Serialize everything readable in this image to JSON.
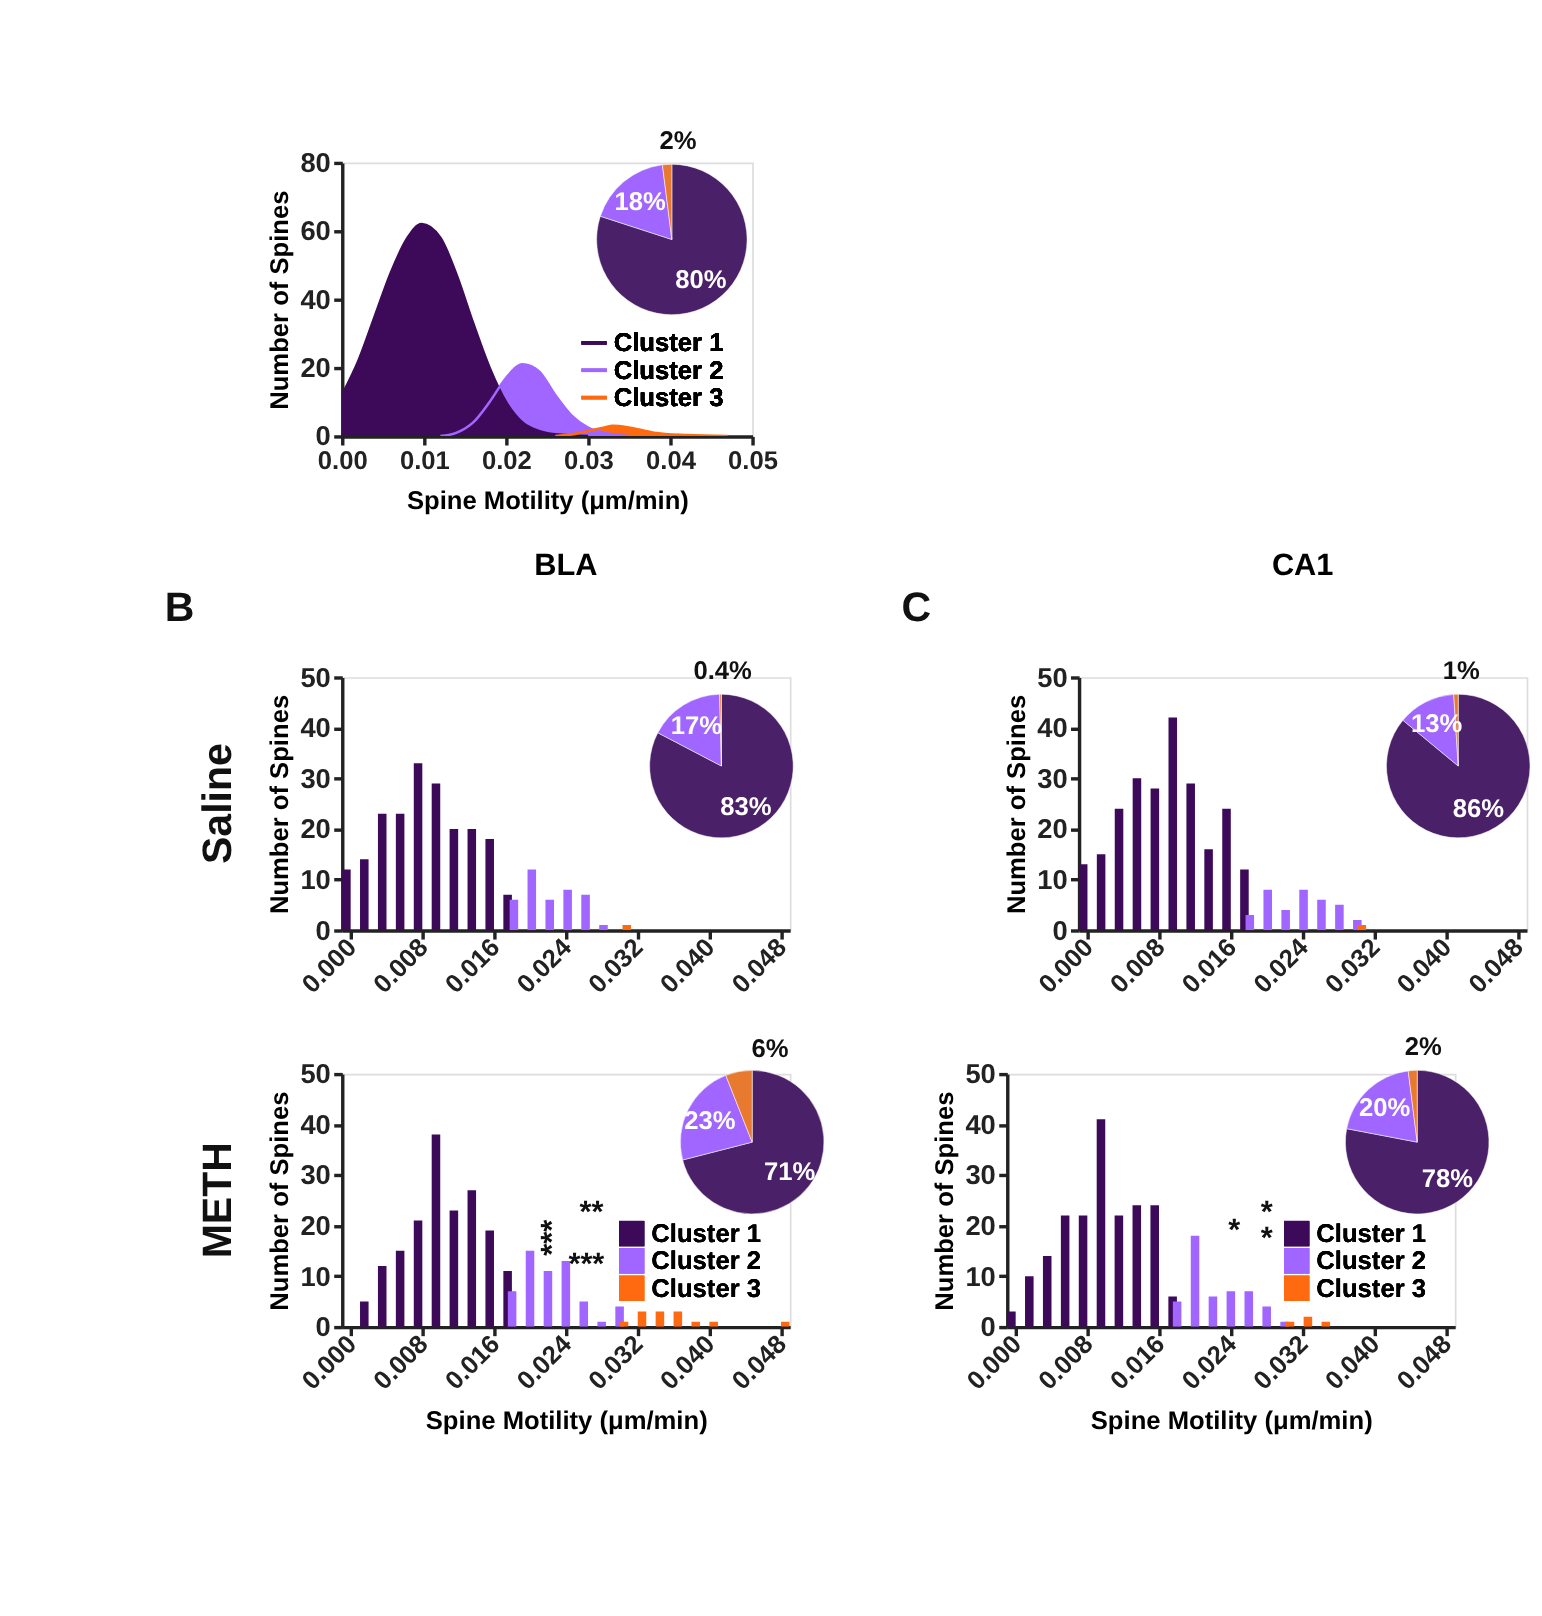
{
  "chart_data": [
    {
      "type": "area",
      "xlabel": "Spine Motility (μm/min)",
      "ylabel": "Number of Spines",
      "xlim": [
        0,
        0.05
      ],
      "xticks": [
        {
          "value": 0,
          "label": "0.00"
        },
        {
          "value": 0.01,
          "label": "0.01"
        },
        {
          "value": 0.02,
          "label": "0.02"
        },
        {
          "value": 0.03,
          "label": "0.03"
        },
        {
          "value": 0.04,
          "label": "0.04"
        },
        {
          "value": 0.05,
          "label": "0.05"
        }
      ],
      "ylim": [
        0,
        80
      ],
      "yticks": [
        0,
        20,
        40,
        60,
        80
      ],
      "legend": "bottom right",
      "series": [
        {
          "name": "Cluster 1",
          "color": "#3d0a5a",
          "x": [
            0,
            0.002,
            0.004,
            0.006,
            0.008,
            0.0097,
            0.012,
            0.014,
            0.016,
            0.018,
            0.02,
            0.022,
            0.024,
            0.026,
            0.03
          ],
          "values": [
            12,
            22,
            35,
            48,
            58,
            62,
            58,
            47,
            33,
            20,
            10,
            4,
            1.5,
            0.5,
            0
          ]
        },
        {
          "name": "Cluster 2",
          "color": "#a066ff",
          "x": [
            0.012,
            0.014,
            0.016,
            0.018,
            0.02,
            0.022,
            0.024,
            0.026,
            0.028,
            0.03,
            0.032,
            0.035
          ],
          "values": [
            0,
            1,
            4,
            10,
            17,
            21,
            19,
            12,
            6,
            2.5,
            1,
            0
          ]
        },
        {
          "name": "Cluster 3",
          "color": "#ff6a10",
          "x": [
            0.026,
            0.028,
            0.03,
            0.032,
            0.033,
            0.035,
            0.038,
            0.042,
            0.047
          ],
          "values": [
            0,
            0.5,
            1.5,
            2.5,
            3,
            2.5,
            1,
            0.3,
            0
          ]
        }
      ]
    },
    {
      "type": "pie",
      "categories": [
        null,
        null,
        null
      ],
      "values": [
        80,
        18,
        2
      ],
      "colors": [
        "#4a2068",
        "#a066ff",
        "#e87a30"
      ],
      "value_labels": [
        "80%",
        "18%",
        "2%"
      ]
    },
    {
      "type": "bar",
      "title": "BLA",
      "ylabel": "Number of Spines",
      "annotations": [
        "B",
        "Saline"
      ],
      "xlim": [
        -0.001,
        0.049
      ],
      "xticks": [
        {
          "value": 0,
          "label": "0.000"
        },
        {
          "value": 0.008,
          "label": "0.008"
        },
        {
          "value": 0.016,
          "label": "0.016"
        },
        {
          "value": 0.024,
          "label": "0.024"
        },
        {
          "value": 0.032,
          "label": "0.032"
        },
        {
          "value": 0.04,
          "label": "0.040"
        },
        {
          "value": 0.048,
          "label": "0.048"
        }
      ],
      "ylim": [
        0,
        50
      ],
      "yticks": [
        0,
        10,
        20,
        30,
        40,
        50
      ],
      "series": [
        {
          "color": "#3d0a5a",
          "x": [
            -0.0005,
            0.0015,
            0.0035,
            0.0055,
            0.0075,
            0.0095,
            0.0115,
            0.0135,
            0.0155,
            0.0175
          ],
          "values": [
            12,
            14,
            23,
            23,
            33,
            29,
            20,
            20,
            18,
            7
          ]
        },
        {
          "color": "#a066ff",
          "x": [
            0.0182,
            0.0202,
            0.0222,
            0.0242,
            0.0262,
            0.0282
          ],
          "values": [
            6,
            12,
            6,
            8,
            7,
            1
          ]
        },
        {
          "color": "#ff6a10",
          "x": [
            0.0308
          ],
          "values": [
            1
          ]
        }
      ]
    },
    {
      "type": "pie",
      "categories": [
        null,
        null,
        null
      ],
      "values": [
        83,
        17,
        0.4
      ],
      "colors": [
        "#4a2068",
        "#a066ff",
        "#e87a30"
      ],
      "value_labels": [
        "83%",
        "17%",
        "0.4%"
      ]
    },
    {
      "type": "bar",
      "title": "CA1",
      "ylabel": "Number of Spines",
      "annotations": [
        "C"
      ],
      "xlim": [
        -0.001,
        0.049
      ],
      "xticks": [
        {
          "value": 0,
          "label": "0.000"
        },
        {
          "value": 0.008,
          "label": "0.008"
        },
        {
          "value": 0.016,
          "label": "0.016"
        },
        {
          "value": 0.024,
          "label": "0.024"
        },
        {
          "value": 0.032,
          "label": "0.032"
        },
        {
          "value": 0.04,
          "label": "0.040"
        },
        {
          "value": 0.048,
          "label": "0.048"
        }
      ],
      "ylim": [
        0,
        50
      ],
      "yticks": [
        0,
        10,
        20,
        30,
        40,
        50
      ],
      "series": [
        {
          "color": "#3d0a5a",
          "x": [
            -0.0005,
            0.0015,
            0.0035,
            0.0055,
            0.0075,
            0.0095,
            0.0115,
            0.0135,
            0.0155,
            0.0175
          ],
          "values": [
            13,
            15,
            24,
            30,
            28,
            42,
            29,
            16,
            24,
            12
          ]
        },
        {
          "color": "#a066ff",
          "x": [
            0.0181,
            0.0201,
            0.0221,
            0.0241,
            0.0261,
            0.0281,
            0.0301
          ],
          "values": [
            3,
            8,
            4,
            8,
            6,
            5,
            2
          ]
        },
        {
          "color": "#ff6a10",
          "x": [
            0.0306
          ],
          "values": [
            1
          ]
        }
      ]
    },
    {
      "type": "pie",
      "categories": [
        null,
        null,
        null
      ],
      "values": [
        86,
        13,
        1
      ],
      "colors": [
        "#4a2068",
        "#a066ff",
        "#e87a30"
      ],
      "value_labels": [
        "86%",
        "13%",
        "1%"
      ]
    },
    {
      "type": "bar",
      "xlabel": "Spine Motility (μm/min)",
      "ylabel": "Number of Spines",
      "annotations": [
        "METH",
        "**",
        "***",
        "***"
      ],
      "legend": "bottom right",
      "xlim": [
        -0.001,
        0.049
      ],
      "xticks": [
        {
          "value": 0,
          "label": "0.000"
        },
        {
          "value": 0.008,
          "label": "0.008"
        },
        {
          "value": 0.016,
          "label": "0.016"
        },
        {
          "value": 0.024,
          "label": "0.024"
        },
        {
          "value": 0.032,
          "label": "0.032"
        },
        {
          "value": 0.04,
          "label": "0.040"
        },
        {
          "value": 0.048,
          "label": "0.048"
        }
      ],
      "ylim": [
        0,
        50
      ],
      "yticks": [
        0,
        10,
        20,
        30,
        40,
        50
      ],
      "series": [
        {
          "name": "Cluster 1",
          "color": "#3d0a5a",
          "x": [
            0.0015,
            0.0035,
            0.0055,
            0.0075,
            0.0095,
            0.0115,
            0.0135,
            0.0155,
            0.0175
          ],
          "values": [
            5,
            12,
            15,
            21,
            38,
            23,
            27,
            19,
            11
          ]
        },
        {
          "name": "Cluster 2",
          "color": "#a066ff",
          "x": [
            0.018,
            0.02,
            0.022,
            0.024,
            0.026,
            0.028,
            0.03
          ],
          "values": [
            7,
            15,
            11,
            13,
            5,
            1,
            4
          ]
        },
        {
          "name": "Cluster 3",
          "color": "#ff6a10",
          "x": [
            0.0305,
            0.0325,
            0.0345,
            0.0365,
            0.0385,
            0.0405,
            0.0485
          ],
          "values": [
            1,
            3,
            3,
            3,
            1,
            1,
            1
          ]
        }
      ]
    },
    {
      "type": "pie",
      "categories": [
        null,
        null,
        null
      ],
      "values": [
        71,
        23,
        6
      ],
      "colors": [
        "#4a2068",
        "#a066ff",
        "#e87a30"
      ],
      "value_labels": [
        "71%",
        "23%",
        "6%"
      ]
    },
    {
      "type": "bar",
      "xlabel": "Spine Motility (μm/min)",
      "ylabel": "Number of Spines",
      "annotations": [
        "*",
        "*",
        "*"
      ],
      "legend": "bottom right",
      "xlim": [
        -0.001,
        0.049
      ],
      "xticks": [
        {
          "value": 0,
          "label": "0.000"
        },
        {
          "value": 0.008,
          "label": "0.008"
        },
        {
          "value": 0.016,
          "label": "0.016"
        },
        {
          "value": 0.024,
          "label": "0.024"
        },
        {
          "value": 0.032,
          "label": "0.032"
        },
        {
          "value": 0.04,
          "label": "0.040"
        },
        {
          "value": 0.048,
          "label": "0.048"
        }
      ],
      "ylim": [
        0,
        50
      ],
      "yticks": [
        0,
        10,
        20,
        30,
        40,
        50
      ],
      "series": [
        {
          "name": "Cluster 1",
          "color": "#3d0a5a",
          "x": [
            -0.0005,
            0.0015,
            0.0035,
            0.0055,
            0.0075,
            0.0095,
            0.0115,
            0.0135,
            0.0155,
            0.0175
          ],
          "values": [
            3,
            10,
            14,
            22,
            22,
            41,
            22,
            24,
            24,
            6
          ]
        },
        {
          "name": "Cluster 2",
          "color": "#a066ff",
          "x": [
            0.018,
            0.02,
            0.022,
            0.024,
            0.026,
            0.028,
            0.03
          ],
          "values": [
            5,
            18,
            6,
            7,
            7,
            4,
            1
          ]
        },
        {
          "name": "Cluster 3",
          "color": "#ff6a10",
          "x": [
            0.0306,
            0.0326,
            0.0346
          ],
          "values": [
            1,
            2,
            1
          ]
        }
      ]
    },
    {
      "type": "pie",
      "categories": [
        null,
        null,
        null
      ],
      "values": [
        78,
        20,
        2
      ],
      "colors": [
        "#4a2068",
        "#a066ff",
        "#e87a30"
      ],
      "value_labels": [
        "78%",
        "20%",
        "2%"
      ]
    }
  ]
}
